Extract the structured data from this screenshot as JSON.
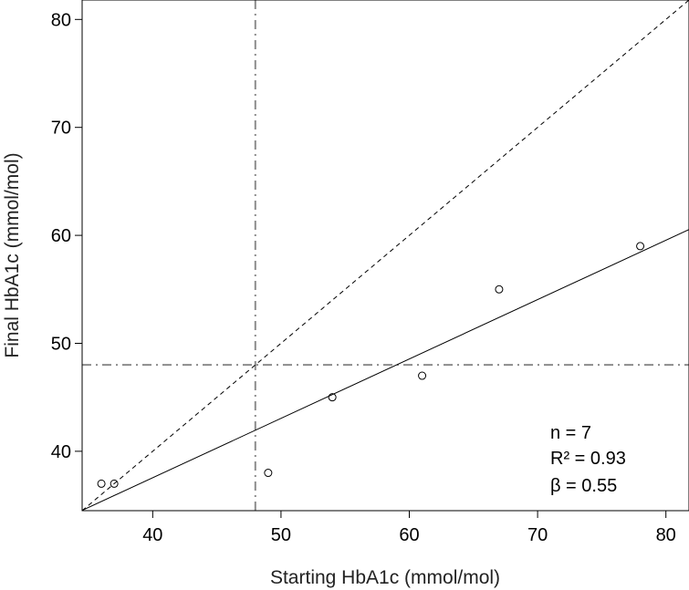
{
  "chart_data": {
    "type": "scatter",
    "xlabel": "Starting HbA1c (mmol/mol)",
    "ylabel": "Final HbA1c (mmol/mol)",
    "xlim": [
      34.5,
      81.8
    ],
    "ylim": [
      34.5,
      81.8
    ],
    "xticks": [
      40,
      50,
      60,
      70,
      80
    ],
    "yticks": [
      40,
      50,
      60,
      70,
      80
    ],
    "grid": false,
    "points": [
      {
        "x": 36,
        "y": 37
      },
      {
        "x": 37,
        "y": 37
      },
      {
        "x": 49,
        "y": 38
      },
      {
        "x": 54,
        "y": 45
      },
      {
        "x": 61,
        "y": 47
      },
      {
        "x": 67,
        "y": 55
      },
      {
        "x": 78,
        "y": 59
      }
    ],
    "identity_line": {
      "slope": 1,
      "intercept": 0,
      "style": "dashed"
    },
    "fit_line": {
      "slope": 0.55,
      "intercept": 15.55,
      "style": "solid"
    },
    "reference_lines": {
      "vertical_x": 48,
      "horizontal_y": 48,
      "style": "dash-dot",
      "color": "#8c8c8c"
    },
    "annotations": [
      "n = 7",
      "R² = 0.93",
      "β = 0.55"
    ]
  }
}
